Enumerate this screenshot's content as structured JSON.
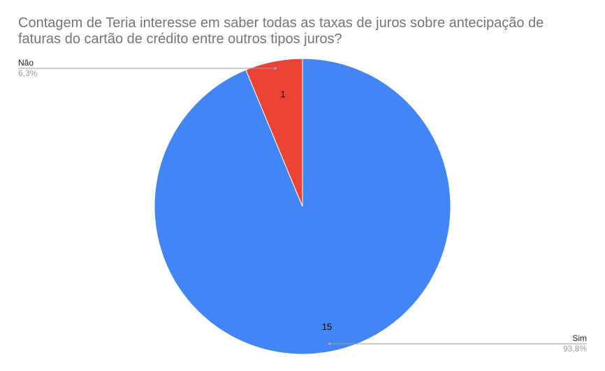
{
  "chart_data": {
    "type": "pie",
    "title": "Contagem de Teria interesse em saber todas as taxas de juros sobre antecipação de faturas do cartão de crédito entre outros tipos juros?",
    "slices": [
      {
        "label": "Sim",
        "value": 15,
        "percent_label": "93,8%",
        "color": "#4285f4"
      },
      {
        "label": "Não",
        "value": 1,
        "percent_label": "6,3%",
        "color": "#ea4335"
      }
    ],
    "legend": "none",
    "start_angle_deg": 0,
    "direction": "clockwise"
  },
  "colors": {
    "leader_line": "#9e9e9e",
    "background": "#ffffff"
  }
}
